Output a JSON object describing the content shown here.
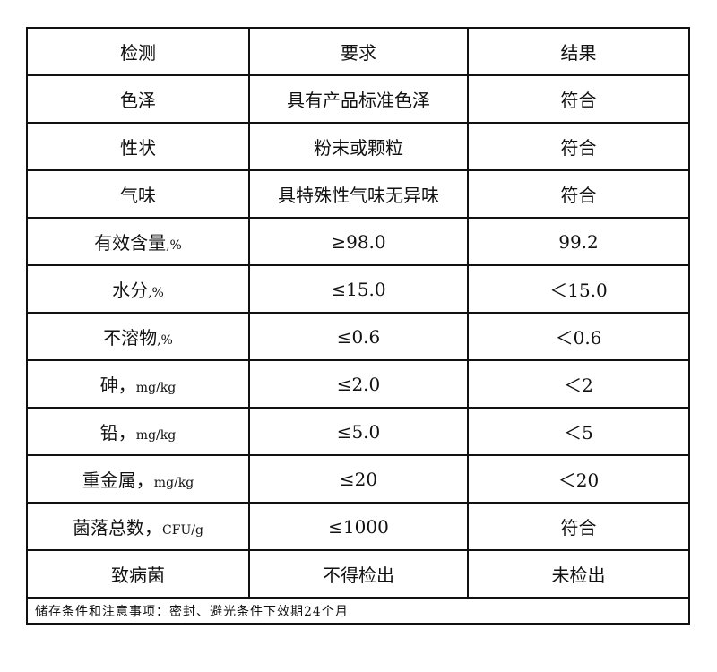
{
  "header": {
    "item": "检测",
    "requirement": "要求",
    "result": "结果"
  },
  "rows": [
    {
      "item": "色泽",
      "unit": "",
      "requirement": "具有产品标准色泽",
      "result": "符合"
    },
    {
      "item": "性状",
      "unit": "",
      "requirement": "粉末或颗粒",
      "result": "符合"
    },
    {
      "item": "气味",
      "unit": "",
      "requirement": "具特殊性气味无异味",
      "result": "符合"
    },
    {
      "item": "有效含量",
      "unit": ",%",
      "requirement": "≥98.0",
      "result": "99.2"
    },
    {
      "item": "水分",
      "unit": ",%",
      "requirement": "≤15.0",
      "result": "＜15.0"
    },
    {
      "item": "不溶物",
      "unit": ",%",
      "requirement": "≤0.6",
      "result": "＜0.6"
    },
    {
      "item": "砷，",
      "unit": "mg/kg",
      "requirement": "≤2.0",
      "result": "＜2"
    },
    {
      "item": "铅，",
      "unit": "mg/kg",
      "requirement": "≤5.0",
      "result": "＜5"
    },
    {
      "item": "重金属，",
      "unit": "mg/kg",
      "requirement": "≤20",
      "result": "＜20"
    },
    {
      "item": "菌落总数，",
      "unit": "CFU/g",
      "requirement": "≤1000",
      "result": "符合"
    },
    {
      "item": "致病菌",
      "unit": "",
      "requirement": "不得检出",
      "result": "未检出"
    }
  ],
  "footer": "储存条件和注意事项：密封、避光条件下效期24个月"
}
